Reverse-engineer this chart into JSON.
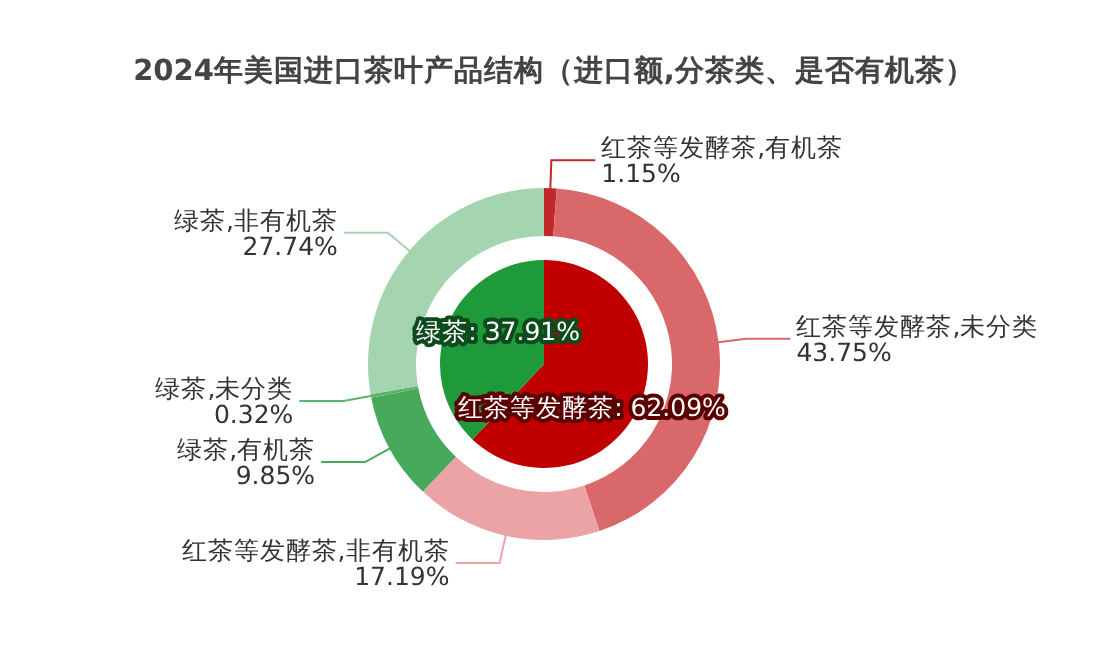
{
  "chart_data": [
    {
      "type": "donut",
      "title": "2024年美国进口茶叶产品结构（进口额,分茶类、是否有机茶）",
      "categories": [
        "红茶等发酵茶,有机茶",
        "红茶等发酵茶,未分类",
        "红茶等发酵茶,非有机茶",
        "绿茶,有机茶",
        "绿茶,未分类",
        "绿茶,非有机茶"
      ],
      "values": [
        1.15,
        43.75,
        17.19,
        9.85,
        0.32,
        27.74
      ],
      "value_labels": [
        "1.15%",
        "43.75%",
        "17.19%",
        "9.85%",
        "0.32%",
        "27.74%"
      ],
      "colors": [
        "#c0282a",
        "#d9686b",
        "#eba3a5",
        "#47a95a",
        "#5db46d",
        "#a5d5b0"
      ]
    },
    {
      "type": "pie",
      "categories": [
        "红茶等发酵茶",
        "绿茶"
      ],
      "values": [
        62.09,
        37.91
      ],
      "value_labels": [
        "62.09%",
        "37.91%"
      ],
      "colors": [
        "#c00000",
        "#1f9a3b"
      ]
    }
  ]
}
